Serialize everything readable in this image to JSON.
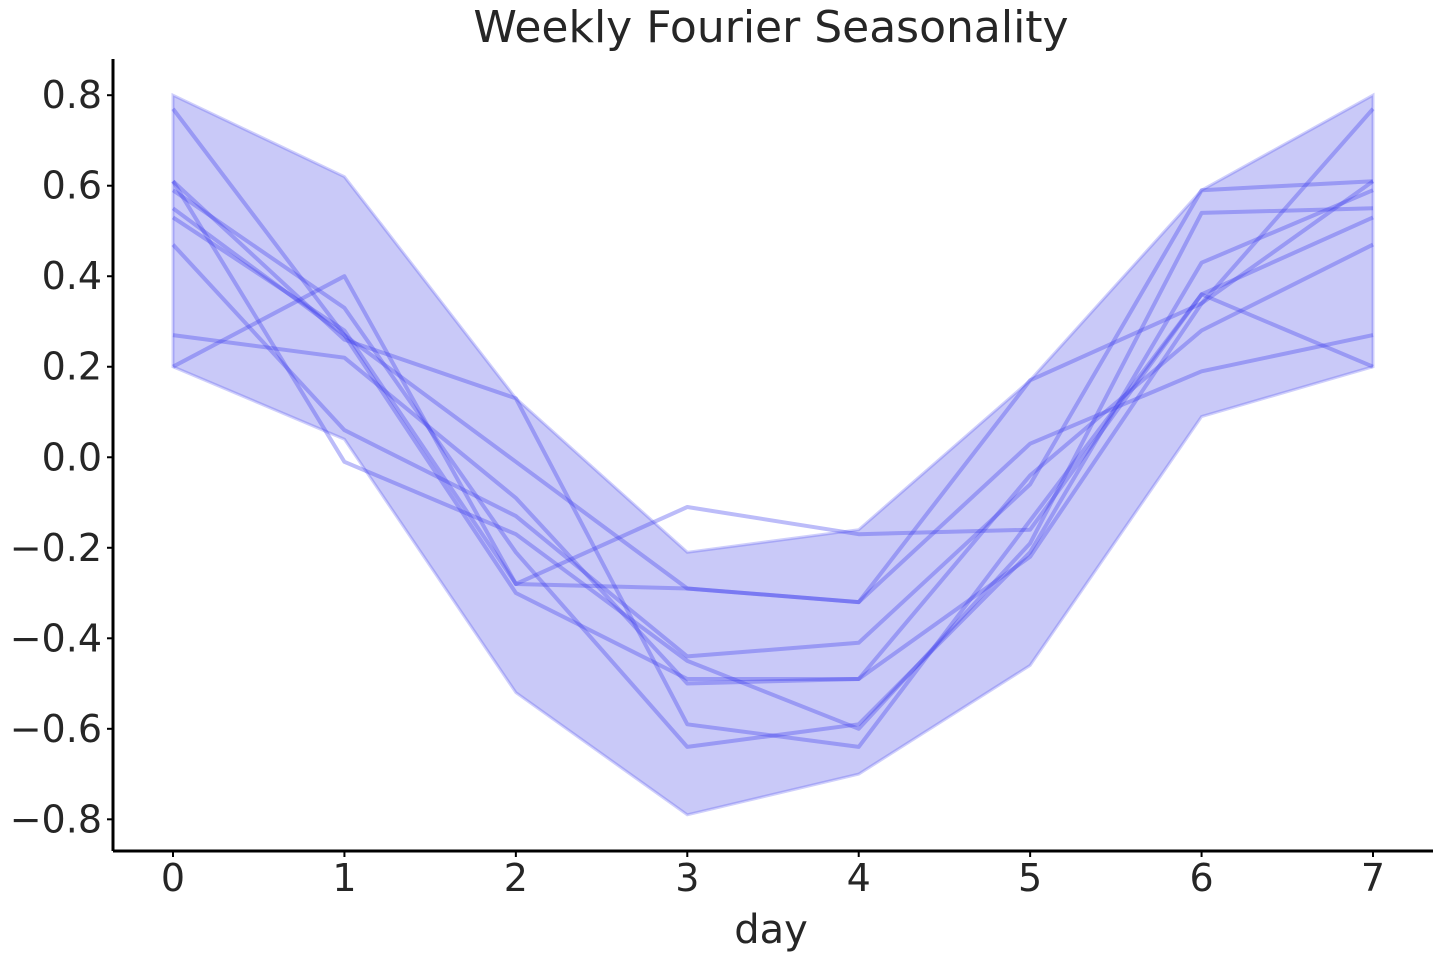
{
  "chart_data": {
    "type": "line",
    "title": "Weekly Fourier Seasonality",
    "xlabel": "day",
    "ylabel": "",
    "x": [
      0,
      1,
      2,
      3,
      4,
      5,
      6,
      7
    ],
    "xlim": [
      -0.35,
      7.35
    ],
    "ylim": [
      -0.87,
      0.88
    ],
    "xticks": [
      0,
      1,
      2,
      3,
      4,
      5,
      6,
      7
    ],
    "yticks": [
      0.8,
      0.6,
      0.4,
      0.2,
      0.0,
      -0.2,
      -0.4,
      -0.6,
      -0.8
    ],
    "ytick_labels": [
      "0.8",
      "0.6",
      "0.4",
      "0.2",
      "0.0",
      "−0.2",
      "−0.4",
      "−0.6",
      "−0.8"
    ],
    "grid": false,
    "line_color": "#4040ee",
    "band_color": "#7f7fee",
    "band": {
      "upper": [
        0.8,
        0.62,
        0.13,
        -0.21,
        -0.16,
        0.17,
        0.59,
        0.8
      ],
      "lower": [
        0.2,
        0.04,
        -0.52,
        -0.79,
        -0.7,
        -0.46,
        0.09,
        0.2
      ]
    },
    "series": [
      {
        "values": [
          0.77,
          0.27,
          -0.3,
          -0.49,
          -0.49,
          -0.22,
          0.34,
          0.77
        ]
      },
      {
        "values": [
          0.61,
          -0.01,
          -0.17,
          -0.45,
          -0.6,
          -0.19,
          0.54,
          0.55
        ]
      },
      {
        "values": [
          0.59,
          0.33,
          -0.21,
          -0.64,
          -0.59,
          -0.21,
          0.43,
          0.59
        ]
      },
      {
        "values": [
          0.55,
          0.27,
          -0.01,
          -0.29,
          -0.32,
          0.17,
          0.34,
          0.61
        ]
      },
      {
        "values": [
          0.53,
          0.28,
          -0.28,
          -0.11,
          -0.17,
          -0.16,
          0.36,
          0.53
        ]
      },
      {
        "values": [
          0.47,
          0.06,
          -0.13,
          -0.44,
          -0.41,
          -0.06,
          0.59,
          0.61
        ]
      },
      {
        "values": [
          0.27,
          0.22,
          -0.09,
          -0.5,
          -0.49,
          -0.04,
          0.28,
          0.47
        ]
      },
      {
        "values": [
          0.2,
          0.4,
          -0.28,
          -0.29,
          -0.32,
          0.03,
          0.19,
          0.27
        ]
      },
      {
        "values": [
          0.61,
          0.26,
          0.13,
          -0.59,
          -0.64,
          -0.14,
          0.36,
          0.2
        ]
      }
    ]
  }
}
